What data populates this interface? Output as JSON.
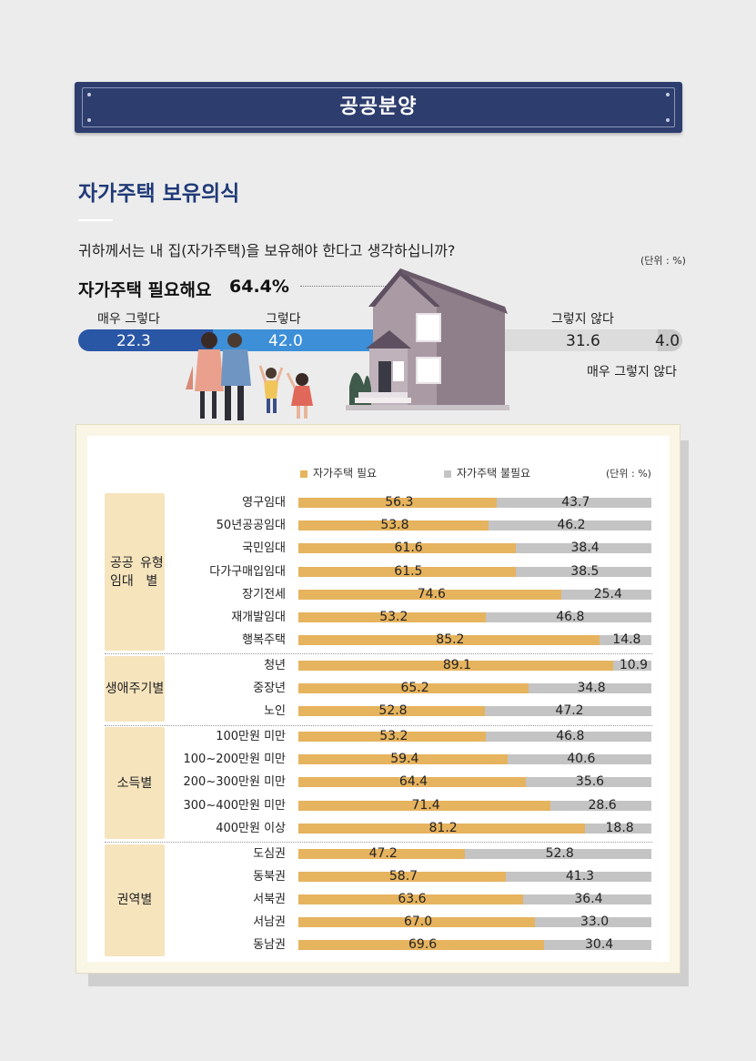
{
  "banner": {
    "title": "공공분양"
  },
  "section_title": "자가주택 보유의식",
  "question": "귀하께서는 내 집(자가주택)을 보유해야 한다고 생각하십니까?",
  "unit_label": "(단위 : %)",
  "summary": {
    "label": "자가주택 필요해요",
    "value": "64.4%",
    "segments": [
      {
        "label": "매우 그렇다",
        "value": 22.3,
        "color": "#2a56a6"
      },
      {
        "label": "그렇다",
        "value": 42.0,
        "color": "#3d8fd8"
      },
      {
        "label": "그렇지 않다",
        "value": 31.6,
        "color": "#dcdcdc"
      },
      {
        "label": "매우 그렇지 않다",
        "value": 4.0,
        "color": "#c9c9c9"
      }
    ],
    "texts": {
      "s1": "22.3",
      "s2": "42.0",
      "s3": "31.6",
      "s4": "4.0"
    }
  },
  "chart_data": {
    "type": "bar",
    "stacked": true,
    "orientation": "horizontal",
    "unit": "(단위 : %)",
    "legend": [
      {
        "name": "자가주택 필요",
        "color": "#e6b35e"
      },
      {
        "name": "자가주택 불필요",
        "color": "#c4c4c4"
      }
    ],
    "groups": [
      {
        "name": "공공임대 유형별",
        "rows": [
          {
            "label": "영구임대",
            "need": 56.3,
            "not_need": 43.7
          },
          {
            "label": "50년공공임대",
            "need": 53.8,
            "not_need": 46.2
          },
          {
            "label": "국민임대",
            "need": 61.6,
            "not_need": 38.4
          },
          {
            "label": "다가구매입임대",
            "need": 61.5,
            "not_need": 38.5
          },
          {
            "label": "장기전세",
            "need": 74.6,
            "not_need": 25.4
          },
          {
            "label": "재개발임대",
            "need": 53.2,
            "not_need": 46.8
          },
          {
            "label": "행복주택",
            "need": 85.2,
            "not_need": 14.8
          }
        ]
      },
      {
        "name": "생애 주기별",
        "rows": [
          {
            "label": "청년",
            "need": 89.1,
            "not_need": 10.9
          },
          {
            "label": "중장년",
            "need": 65.2,
            "not_need": 34.8
          },
          {
            "label": "노인",
            "need": 52.8,
            "not_need": 47.2
          }
        ]
      },
      {
        "name": "소득별",
        "rows": [
          {
            "label": "100만원 미만",
            "need": 53.2,
            "not_need": 46.8
          },
          {
            "label": "100~200만원 미만",
            "need": 59.4,
            "not_need": 40.6
          },
          {
            "label": "200~300만원 미만",
            "need": 64.4,
            "not_need": 35.6
          },
          {
            "label": "300~400만원 미만",
            "need": 71.4,
            "not_need": 28.6
          },
          {
            "label": "400만원 이상",
            "need": 81.2,
            "not_need": 18.8
          }
        ]
      },
      {
        "name": "권역별",
        "rows": [
          {
            "label": "도심권",
            "need": 47.2,
            "not_need": 52.8
          },
          {
            "label": "동북권",
            "need": 58.7,
            "not_need": 41.3
          },
          {
            "label": "서북권",
            "need": 63.6,
            "not_need": 36.4
          },
          {
            "label": "서남권",
            "need": 67.0,
            "not_need": 33.0
          },
          {
            "label": "동남권",
            "need": 69.6,
            "not_need": 30.4
          }
        ]
      }
    ],
    "xlim": [
      0,
      100
    ]
  }
}
